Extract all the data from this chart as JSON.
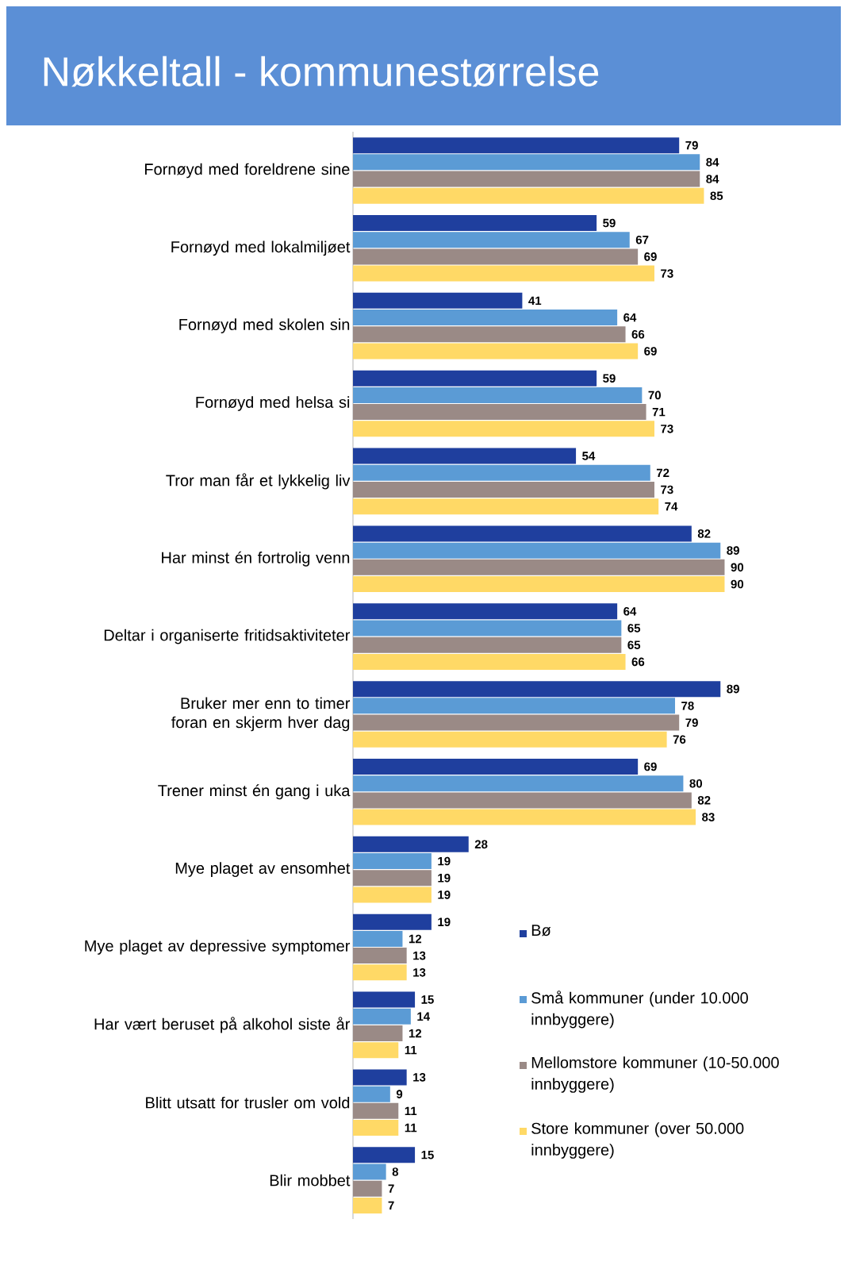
{
  "chart_data": {
    "type": "bar",
    "orientation": "horizontal",
    "title": "Nøkkeltall - kommunestørrelse",
    "categories": [
      "Fornøyd med foreldrene sine",
      "Fornøyd med lokalmiljøet",
      "Fornøyd med skolen sin",
      "Fornøyd med helsa si",
      "Tror man får et lykkelig liv",
      "Har minst én fortrolig venn",
      "Deltar i organiserte fritidsaktiviteter",
      "Bruker mer enn to timer foran en skjerm hver dag",
      "Trener minst én gang i uka",
      "Mye plaget av ensomhet",
      "Mye plaget av depressive symptomer",
      "Har vært beruset på alkohol siste år",
      "Blitt utsatt for trusler om vold",
      "Blir mobbet"
    ],
    "series": [
      {
        "name": "Bø",
        "color": "#1f3f9e",
        "values": [
          79,
          59,
          41,
          59,
          54,
          82,
          64,
          89,
          69,
          28,
          19,
          15,
          13,
          15
        ]
      },
      {
        "name": "Små kommuner (under 10.000 innbyggere)",
        "color": "#5b9bd5",
        "values": [
          84,
          67,
          64,
          70,
          72,
          89,
          65,
          78,
          80,
          19,
          12,
          14,
          9,
          8
        ]
      },
      {
        "name": "Mellomstore kommuner (10-50.000 innbyggere)",
        "color": "#9a8a86",
        "values": [
          84,
          69,
          66,
          71,
          73,
          90,
          65,
          79,
          82,
          19,
          13,
          12,
          11,
          7
        ]
      },
      {
        "name": "Store kommuner (over 50.000 innbyggere)",
        "color": "#ffd966",
        "values": [
          85,
          73,
          69,
          73,
          74,
          90,
          66,
          76,
          83,
          19,
          13,
          11,
          11,
          7
        ]
      }
    ],
    "data_labels": true,
    "legend": "right"
  }
}
